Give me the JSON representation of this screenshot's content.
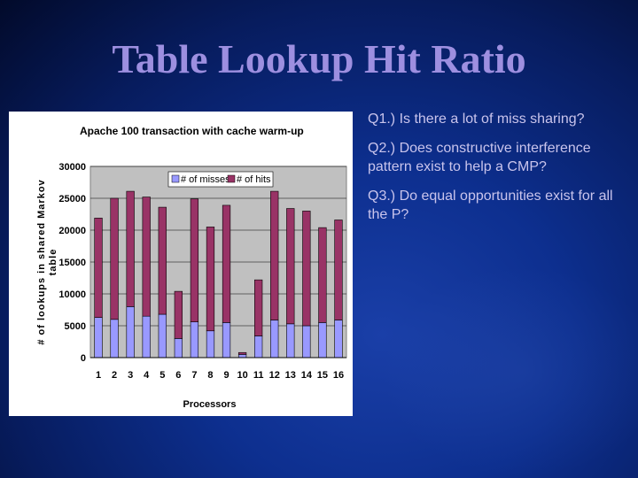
{
  "slide": {
    "title": "Table Lookup Hit Ratio",
    "questions": [
      "Q1.) Is there a lot of miss sharing?",
      "Q2.) Does constructive interference pattern exist to help a CMP?",
      "Q3.) Do equal opportunities exist for all the P?"
    ]
  },
  "chart_data": {
    "type": "bar",
    "stacked": true,
    "title": "Apache 100 transaction with cache warm-up",
    "xlabel": "Processors",
    "ylabel": "# of lookups in shared Markov table",
    "ylim": [
      0,
      30000
    ],
    "yticks": [
      0,
      5000,
      10000,
      15000,
      20000,
      25000,
      30000
    ],
    "grid": true,
    "legend_position": "top",
    "categories": [
      "1",
      "2",
      "3",
      "4",
      "5",
      "6",
      "7",
      "8",
      "9",
      "10",
      "11",
      "12",
      "13",
      "14",
      "15",
      "16"
    ],
    "series": [
      {
        "name": "# of misses",
        "color": "#9999ff",
        "values": [
          6300,
          6000,
          8000,
          6500,
          6800,
          3000,
          5600,
          4200,
          5500,
          500,
          3400,
          5900,
          5300,
          5000,
          5500,
          5900
        ]
      },
      {
        "name": "# of hits",
        "color": "#993366",
        "values": [
          15600,
          19000,
          18100,
          18700,
          16800,
          7400,
          19300,
          16300,
          18400,
          300,
          8800,
          20200,
          18100,
          18000,
          14900,
          15700
        ]
      }
    ]
  }
}
